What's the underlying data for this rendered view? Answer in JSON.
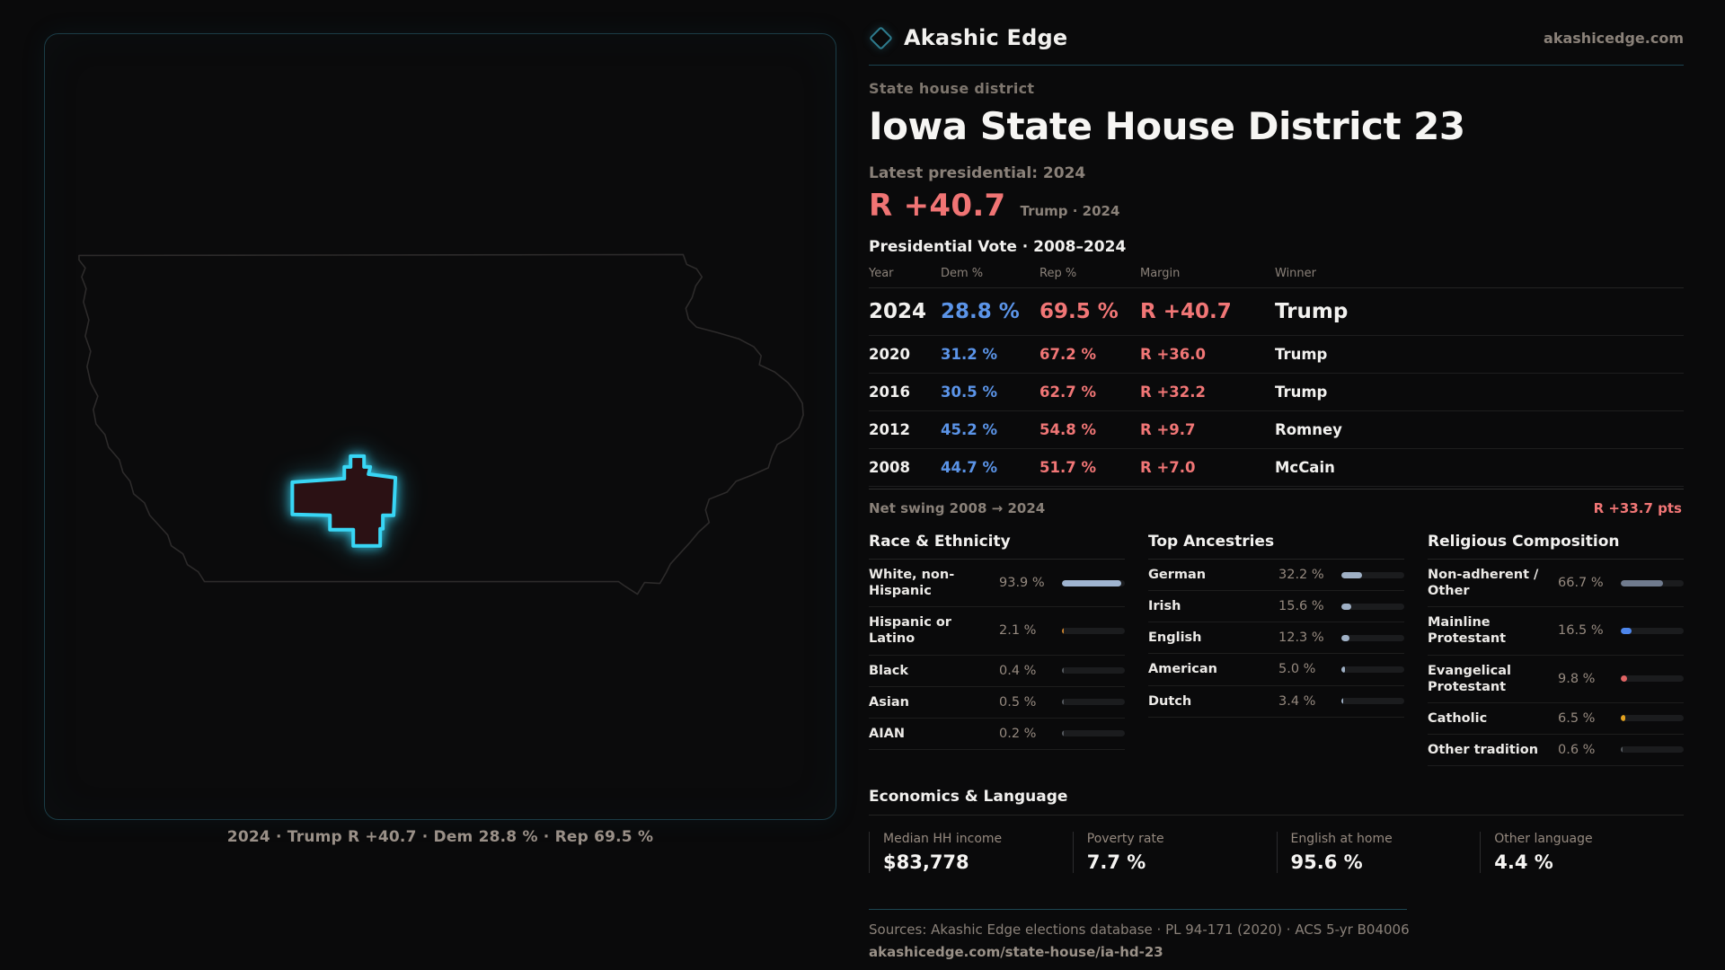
{
  "brand": {
    "name": "Akashic Edge",
    "domain": "akashicedge.com"
  },
  "page": {
    "kicker": "State house district",
    "title": "Iowa State House District 23",
    "latest_label": "Latest presidential: 2024",
    "headline_margin": "R +40.7",
    "headline_context": "Trump · 2024"
  },
  "map": {
    "caption": "2024 · Trump R +40.7 · Dem 28.8 % · Rep 69.5 %",
    "district_outline_color": "#38d6f5",
    "district_fill_color": "#2b1114",
    "state_outline_color": "#2d2b2b"
  },
  "vote_table": {
    "title": "Presidential Vote · 2008–2024",
    "columns": [
      "Year",
      "Dem %",
      "Rep %",
      "Margin",
      "Winner"
    ],
    "rows": [
      {
        "year": "2024",
        "dem": "28.8 %",
        "rep": "69.5 %",
        "margin": "R +40.7",
        "winner": "Trump",
        "emphasis": true
      },
      {
        "year": "2020",
        "dem": "31.2 %",
        "rep": "67.2 %",
        "margin": "R +36.0",
        "winner": "Trump",
        "emphasis": false
      },
      {
        "year": "2016",
        "dem": "30.5 %",
        "rep": "62.7 %",
        "margin": "R +32.2",
        "winner": "Trump",
        "emphasis": false
      },
      {
        "year": "2012",
        "dem": "45.2 %",
        "rep": "54.8 %",
        "margin": "R +9.7",
        "winner": "Romney",
        "emphasis": false
      },
      {
        "year": "2008",
        "dem": "44.7 %",
        "rep": "51.7 %",
        "margin": "R +7.0",
        "winner": "McCain",
        "emphasis": false
      }
    ],
    "net_swing_label": "Net swing 2008 → 2024",
    "net_swing_value": "R +33.7 pts",
    "dem_color": "#5b94e8",
    "rep_color": "#f17676"
  },
  "race": {
    "title": "Race & Ethnicity",
    "rows": [
      {
        "label": "White, non-Hispanic",
        "value": "93.9 %",
        "pct": 93.9,
        "color": "#9fb4d0"
      },
      {
        "label": "Hispanic or Latino",
        "value": "2.1 %",
        "pct": 2.1,
        "color": "#c9822e"
      },
      {
        "label": "Black",
        "value": "0.4 %",
        "pct": 0.4,
        "color": "#55595e"
      },
      {
        "label": "Asian",
        "value": "0.5 %",
        "pct": 0.5,
        "color": "#55595e"
      },
      {
        "label": "AIAN",
        "value": "0.2 %",
        "pct": 0.2,
        "color": "#55595e"
      }
    ]
  },
  "ancestries": {
    "title": "Top Ancestries",
    "rows": [
      {
        "label": "German",
        "value": "32.2 %",
        "pct": 32.2,
        "color": "#9fb0c5"
      },
      {
        "label": "Irish",
        "value": "15.6 %",
        "pct": 15.6,
        "color": "#9fb0c5"
      },
      {
        "label": "English",
        "value": "12.3 %",
        "pct": 12.3,
        "color": "#9fb0c5"
      },
      {
        "label": "American",
        "value": "5.0 %",
        "pct": 5.0,
        "color": "#9fb0c5"
      },
      {
        "label": "Dutch",
        "value": "3.4 %",
        "pct": 3.4,
        "color": "#9fb0c5"
      }
    ]
  },
  "religion": {
    "title": "Religious Composition",
    "rows": [
      {
        "label": "Non-adherent / Other",
        "value": "66.7 %",
        "pct": 66.7,
        "color": "#707b8e"
      },
      {
        "label": "Mainline Protestant",
        "value": "16.5 %",
        "pct": 16.5,
        "color": "#4d86ec"
      },
      {
        "label": "Evangelical Protestant",
        "value": "9.8 %",
        "pct": 9.8,
        "color": "#e06464"
      },
      {
        "label": "Catholic",
        "value": "6.5 %",
        "pct": 6.5,
        "color": "#e3a21f"
      },
      {
        "label": "Other tradition",
        "value": "0.6 %",
        "pct": 0.6,
        "color": "#55595e"
      }
    ]
  },
  "economics": {
    "title": "Economics & Language",
    "stats": [
      {
        "label": "Median HH income",
        "value": "$83,778"
      },
      {
        "label": "Poverty rate",
        "value": "7.7 %"
      },
      {
        "label": "English at home",
        "value": "95.6 %"
      },
      {
        "label": "Other language",
        "value": "4.4 %"
      }
    ]
  },
  "footer": {
    "sources": "Sources: Akashic Edge elections database · PL 94-171 (2020) · ACS 5-yr B04006",
    "permalink": "akashicedge.com/state-house/ia-hd-23"
  }
}
